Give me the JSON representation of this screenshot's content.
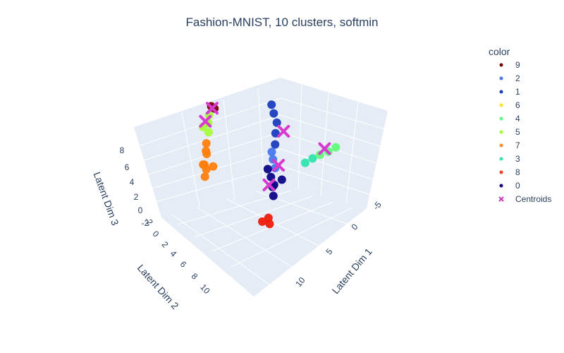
{
  "chart_data": {
    "type": "scatter",
    "title": "Fashion-MNIST, 10 clusters, softmin",
    "axes": {
      "x": {
        "label": "Latent Dim 1",
        "ticks": [
          "-5",
          "0",
          "5",
          "10"
        ],
        "range": [
          -6,
          14
        ]
      },
      "y": {
        "label": "Latent Dim 2",
        "ticks": [
          "-2",
          "0",
          "2",
          "4",
          "6",
          "8",
          "10"
        ],
        "range": [
          -3,
          11
        ]
      },
      "z": {
        "label": "Latent Dim 3",
        "ticks": [
          "-2",
          "0",
          "2",
          "4",
          "6",
          "8"
        ],
        "range": [
          -3,
          10
        ]
      }
    },
    "legend": {
      "title": "color",
      "placement": "top-right",
      "items": [
        {
          "label": "9",
          "color": "#7a0403"
        },
        {
          "label": "2",
          "color": "#4777ef"
        },
        {
          "label": "1",
          "color": "#1c3dbf"
        },
        {
          "label": "6",
          "color": "#fde030"
        },
        {
          "label": "4",
          "color": "#62f97a"
        },
        {
          "label": "5",
          "color": "#a6fc3b"
        },
        {
          "label": "7",
          "color": "#fe8a2a"
        },
        {
          "label": "3",
          "color": "#2ee5ae"
        },
        {
          "label": "8",
          "color": "#ed4421"
        },
        {
          "label": "0",
          "color": "#0c0786"
        },
        {
          "label": "Centroids",
          "color": "#c73bb9",
          "symbol": "x"
        }
      ]
    },
    "series": [
      {
        "name": "7",
        "color": "#ff7f0e",
        "points": [
          [
            -4.6,
            1.5,
            -1.3
          ],
          [
            -4.2,
            1.9,
            -1.5
          ],
          [
            -4.3,
            1.2,
            -1.0
          ],
          [
            -4.8,
            1.6,
            -0.6
          ],
          [
            -4.4,
            1.8,
            0.0
          ],
          [
            -4.7,
            1.4,
            0.8
          ],
          [
            -4.5,
            1.6,
            1.7
          ],
          [
            -4.6,
            1.5,
            2.6
          ]
        ]
      },
      {
        "name": "5",
        "color": "#a6fc3b",
        "points": [
          [
            -4.5,
            1.4,
            4.2
          ],
          [
            -4.8,
            1.6,
            5.0
          ],
          [
            -4.4,
            1.5,
            5.8
          ],
          [
            -4.6,
            1.3,
            6.5
          ]
        ]
      },
      {
        "name": "9",
        "color": "#7a0403",
        "points": [
          [
            -4.3,
            1.1,
            7.5
          ],
          [
            -4.5,
            1.2,
            7.8
          ]
        ]
      },
      {
        "name": "1",
        "color": "#1c3dbf",
        "points": [
          [
            -1.2,
            -1.0,
            7.8
          ],
          [
            -0.7,
            -0.8,
            7.2
          ],
          [
            -0.1,
            -0.6,
            6.6
          ],
          [
            0.3,
            -0.2,
            5.9
          ],
          [
            0.8,
            0.2,
            5.2
          ]
        ]
      },
      {
        "name": "2",
        "color": "#4777ef",
        "points": [
          [
            1.0,
            0.6,
            4.8
          ],
          [
            1.4,
            0.8,
            4.3
          ],
          [
            1.9,
            1.0,
            3.7
          ]
        ]
      },
      {
        "name": "3",
        "color": "#2ee5ae",
        "points": [
          [
            3.4,
            -0.2,
            4.1
          ],
          [
            3.9,
            -0.4,
            4.9
          ]
        ]
      },
      {
        "name": "4",
        "color": "#62f97a",
        "points": [
          [
            4.4,
            -0.6,
            5.6
          ],
          [
            5.0,
            -0.8,
            6.3
          ],
          [
            5.5,
            -1.0,
            7.1
          ]
        ]
      },
      {
        "name": "0",
        "color": "#0c0786",
        "points": [
          [
            1.4,
            1.2,
            3.4
          ],
          [
            2.0,
            1.4,
            3.0
          ],
          [
            2.6,
            1.6,
            2.6
          ],
          [
            2.3,
            1.5,
            1.9
          ],
          [
            3.0,
            1.3,
            3.3
          ],
          [
            2.8,
            1.8,
            1.4
          ]
        ]
      },
      {
        "name": "8",
        "color": "#ed1e0c",
        "points": [
          [
            3.1,
            2.4,
            -0.8
          ],
          [
            3.5,
            2.6,
            -1.1
          ],
          [
            3.0,
            2.8,
            -0.9
          ]
        ]
      }
    ],
    "centroids": [
      [
        -4.4,
        1.2,
        7.6
      ],
      [
        -4.7,
        1.5,
        5.8
      ],
      [
        0.6,
        -0.6,
        5.9
      ],
      [
        1.7,
        0.6,
        3.4
      ],
      [
        4.6,
        -0.8,
        6.4
      ],
      [
        2.2,
        1.7,
        2.4
      ]
    ]
  }
}
